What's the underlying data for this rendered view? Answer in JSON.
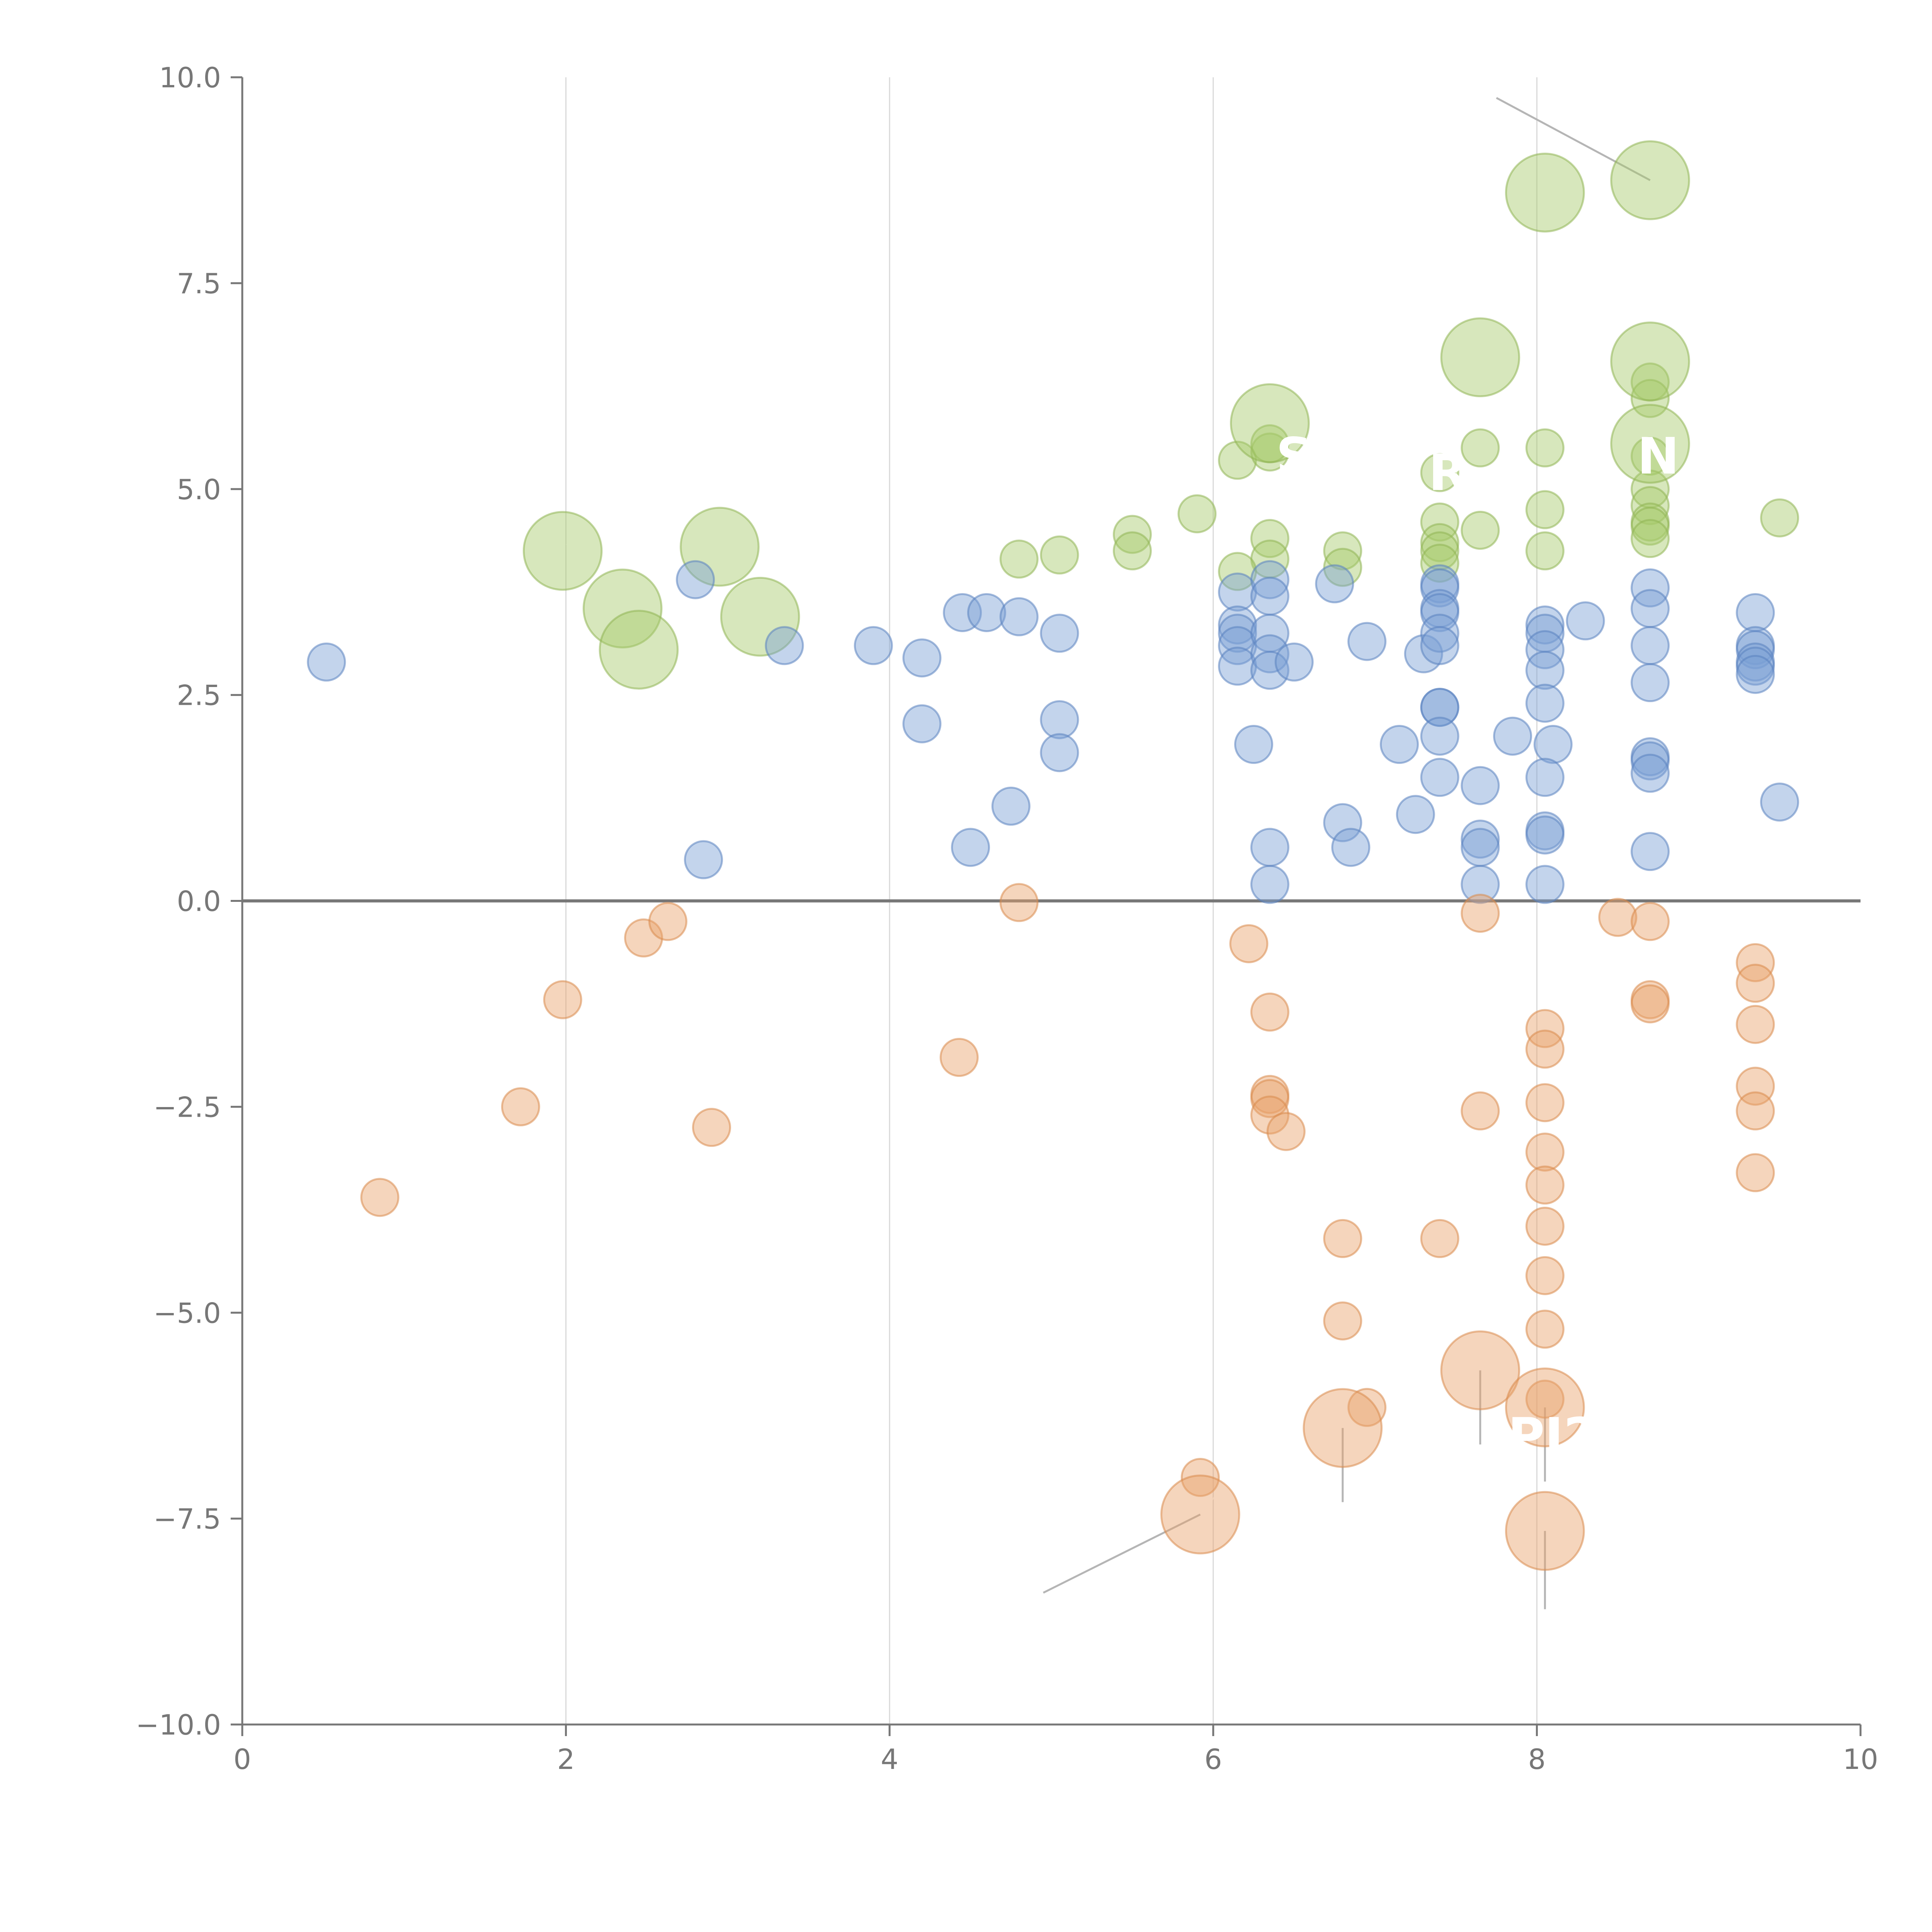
{
  "chart_data": {
    "type": "scatter",
    "title": "",
    "xlabel": "",
    "ylabel": "",
    "xlim": [
      0,
      10
    ],
    "ylim": [
      -10,
      10
    ],
    "x_ticks": [
      0,
      2,
      4,
      6,
      8,
      10
    ],
    "y_ticks": [
      -10,
      -7.5,
      -5,
      -2.5,
      0,
      2.5,
      5,
      7.5,
      10
    ],
    "x_tick_labels": [
      "0",
      "2",
      "4",
      "6",
      "8",
      "10"
    ],
    "y_tick_labels": [
      "−10.0",
      "−7.5",
      "−5.0",
      "−2.5",
      "0.0",
      "2.5",
      "5.0",
      "7.5",
      "10.0"
    ],
    "vertical_grid_at": [
      2,
      4,
      6,
      8
    ],
    "reference_line_y": 0,
    "series": [
      {
        "name": "green",
        "color": "#a6c96a",
        "stroke": "#8fb554",
        "points": [
          [
            6.15,
            5.35,
            1
          ],
          [
            6.35,
            5.45,
            1
          ],
          [
            6.35,
            5.55,
            1
          ],
          [
            6.35,
            4.4,
            1
          ],
          [
            6.35,
            4.15,
            1
          ],
          [
            6.15,
            4.0,
            1
          ],
          [
            5.9,
            4.7,
            1
          ],
          [
            5.5,
            4.45,
            1
          ],
          [
            5.5,
            4.25,
            1
          ],
          [
            5.05,
            4.2,
            1
          ],
          [
            4.8,
            4.15,
            1
          ],
          [
            6.8,
            4.25,
            1
          ],
          [
            6.8,
            4.05,
            1
          ],
          [
            7.4,
            5.2,
            1
          ],
          [
            7.4,
            4.6,
            1
          ],
          [
            7.4,
            4.35,
            1
          ],
          [
            7.4,
            4.25,
            1
          ],
          [
            7.4,
            4.1,
            1
          ],
          [
            7.65,
            5.5,
            1
          ],
          [
            7.65,
            4.5,
            1
          ],
          [
            8.05,
            5.5,
            1
          ],
          [
            8.05,
            4.75,
            1
          ],
          [
            8.05,
            4.25,
            1
          ],
          [
            8.7,
            6.3,
            1
          ],
          [
            8.7,
            6.1,
            1
          ],
          [
            8.7,
            5.4,
            1
          ],
          [
            8.7,
            5.0,
            1
          ],
          [
            8.7,
            4.8,
            1
          ],
          [
            8.7,
            4.6,
            1
          ],
          [
            8.7,
            4.55,
            1
          ],
          [
            8.7,
            4.4,
            1
          ],
          [
            9.5,
            4.65,
            1
          ],
          [
            1.98,
            4.25,
            2.1
          ],
          [
            2.35,
            3.55,
            2.1
          ],
          [
            2.45,
            3.05,
            2.1
          ],
          [
            2.95,
            4.3,
            2.1
          ],
          [
            3.2,
            3.45,
            2.1
          ],
          [
            6.35,
            5.8,
            2.1
          ],
          [
            7.65,
            6.6,
            2.1
          ],
          [
            8.05,
            8.6,
            2.1
          ],
          [
            8.7,
            8.75,
            2.1
          ],
          [
            8.7,
            6.55,
            2.1
          ],
          [
            8.7,
            5.55,
            2.1
          ]
        ]
      },
      {
        "name": "blue",
        "color": "#7a9fd4",
        "stroke": "#5a82c0",
        "points": [
          [
            0.52,
            2.9,
            1
          ],
          [
            2.8,
            3.9,
            1
          ],
          [
            2.85,
            0.5,
            1
          ],
          [
            3.35,
            3.1,
            1
          ],
          [
            3.9,
            3.1,
            1
          ],
          [
            4.2,
            2.95,
            1
          ],
          [
            4.2,
            2.15,
            1
          ],
          [
            4.45,
            3.5,
            1
          ],
          [
            4.6,
            3.5,
            1
          ],
          [
            4.8,
            3.45,
            1
          ],
          [
            4.5,
            0.65,
            1
          ],
          [
            4.75,
            1.15,
            1
          ],
          [
            5.05,
            3.25,
            1
          ],
          [
            5.05,
            2.2,
            1
          ],
          [
            5.05,
            1.8,
            1
          ],
          [
            6.15,
            3.75,
            1
          ],
          [
            6.15,
            3.35,
            1
          ],
          [
            6.15,
            3.25,
            1
          ],
          [
            6.15,
            3.1,
            1
          ],
          [
            6.15,
            2.85,
            1
          ],
          [
            6.25,
            1.9,
            1
          ],
          [
            6.35,
            3.9,
            1
          ],
          [
            6.35,
            3.7,
            1
          ],
          [
            6.35,
            3.25,
            1
          ],
          [
            6.35,
            3.0,
            1
          ],
          [
            6.35,
            2.8,
            1
          ],
          [
            6.5,
            2.9,
            1
          ],
          [
            6.35,
            0.65,
            1
          ],
          [
            6.35,
            0.2,
            1
          ],
          [
            6.75,
            3.85,
            1
          ],
          [
            6.8,
            0.95,
            1
          ],
          [
            6.85,
            0.65,
            1
          ],
          [
            6.95,
            3.15,
            1
          ],
          [
            7.15,
            1.9,
            1
          ],
          [
            7.25,
            1.05,
            1
          ],
          [
            7.3,
            3.0,
            1
          ],
          [
            7.4,
            3.85,
            1
          ],
          [
            7.4,
            3.8,
            1
          ],
          [
            7.4,
            3.55,
            1
          ],
          [
            7.4,
            3.5,
            1
          ],
          [
            7.4,
            3.25,
            1
          ],
          [
            7.4,
            3.1,
            1
          ],
          [
            7.4,
            2.35,
            1
          ],
          [
            7.4,
            2.35,
            1
          ],
          [
            7.4,
            2.0,
            1
          ],
          [
            7.4,
            1.5,
            1
          ],
          [
            7.65,
            1.4,
            1
          ],
          [
            7.65,
            0.75,
            1
          ],
          [
            7.65,
            0.65,
            1
          ],
          [
            7.65,
            0.2,
            1
          ],
          [
            7.85,
            2.0,
            1
          ],
          [
            8.05,
            3.35,
            1
          ],
          [
            8.05,
            3.25,
            1
          ],
          [
            8.05,
            3.05,
            1
          ],
          [
            8.05,
            2.8,
            1
          ],
          [
            8.05,
            2.4,
            1
          ],
          [
            8.1,
            1.9,
            1
          ],
          [
            8.05,
            1.5,
            1
          ],
          [
            8.05,
            0.85,
            1
          ],
          [
            8.05,
            0.8,
            1
          ],
          [
            8.05,
            0.2,
            1
          ],
          [
            8.3,
            3.4,
            1
          ],
          [
            8.7,
            3.8,
            1
          ],
          [
            8.7,
            3.55,
            1
          ],
          [
            8.7,
            3.1,
            1
          ],
          [
            8.7,
            2.65,
            1
          ],
          [
            8.7,
            1.75,
            1
          ],
          [
            8.7,
            1.7,
            1
          ],
          [
            8.7,
            1.55,
            1
          ],
          [
            8.7,
            0.6,
            1
          ],
          [
            9.35,
            3.5,
            1
          ],
          [
            9.35,
            3.1,
            1
          ],
          [
            9.35,
            3.05,
            1
          ],
          [
            9.35,
            2.9,
            1
          ],
          [
            9.35,
            2.85,
            1
          ],
          [
            9.35,
            2.75,
            1
          ],
          [
            9.5,
            1.2,
            1
          ]
        ]
      },
      {
        "name": "orange",
        "color": "#e8a26a",
        "stroke": "#d88a4d",
        "points": [
          [
            0.85,
            -3.6,
            1
          ],
          [
            1.72,
            -2.5,
            1
          ],
          [
            1.98,
            -1.2,
            1
          ],
          [
            2.48,
            -0.45,
            1
          ],
          [
            2.63,
            -0.25,
            1
          ],
          [
            2.9,
            -2.75,
            1
          ],
          [
            4.43,
            -1.9,
            1
          ],
          [
            4.8,
            -0.02,
            1
          ],
          [
            6.22,
            -0.52,
            1
          ],
          [
            6.35,
            -1.35,
            1
          ],
          [
            6.35,
            -2.35,
            1
          ],
          [
            6.35,
            -2.4,
            1
          ],
          [
            6.35,
            -2.6,
            1
          ],
          [
            6.45,
            -2.8,
            1
          ],
          [
            6.8,
            -4.1,
            1
          ],
          [
            6.8,
            -5.1,
            1
          ],
          [
            6.95,
            -6.15,
            1
          ],
          [
            7.4,
            -4.1,
            1
          ],
          [
            7.65,
            -0.15,
            1
          ],
          [
            7.65,
            -2.55,
            1
          ],
          [
            8.05,
            -1.55,
            1
          ],
          [
            8.05,
            -1.8,
            1
          ],
          [
            8.05,
            -2.45,
            1
          ],
          [
            8.05,
            -3.05,
            1
          ],
          [
            8.05,
            -3.45,
            1
          ],
          [
            8.05,
            -3.95,
            1
          ],
          [
            8.05,
            -4.55,
            1
          ],
          [
            8.05,
            -5.2,
            1
          ],
          [
            8.05,
            -6.05,
            1
          ],
          [
            8.5,
            -0.2,
            1
          ],
          [
            8.7,
            -0.25,
            1
          ],
          [
            8.7,
            -1.2,
            1
          ],
          [
            8.7,
            -1.25,
            1
          ],
          [
            9.35,
            -0.75,
            1
          ],
          [
            9.35,
            -1.0,
            1
          ],
          [
            9.35,
            -1.5,
            1
          ],
          [
            9.35,
            -2.25,
            1
          ],
          [
            9.35,
            -2.55,
            1
          ],
          [
            9.35,
            -3.3,
            1
          ],
          [
            5.92,
            -7.0,
            1
          ],
          [
            5.92,
            -7.45,
            2.1
          ],
          [
            6.8,
            -6.4,
            2.1
          ],
          [
            7.65,
            -5.7,
            2.1
          ],
          [
            8.05,
            -6.15,
            2.1
          ],
          [
            8.05,
            -7.65,
            2.1
          ]
        ]
      }
    ],
    "annotations": [
      {
        "text": "S",
        "x": 6.5,
        "y": 5.4
      },
      {
        "text": "R",
        "x": 7.45,
        "y": 5.2
      },
      {
        "text": "N",
        "x": 8.75,
        "y": 5.4
      },
      {
        "text": "PI2",
        "x": 8.1,
        "y": -6.5
      }
    ]
  }
}
